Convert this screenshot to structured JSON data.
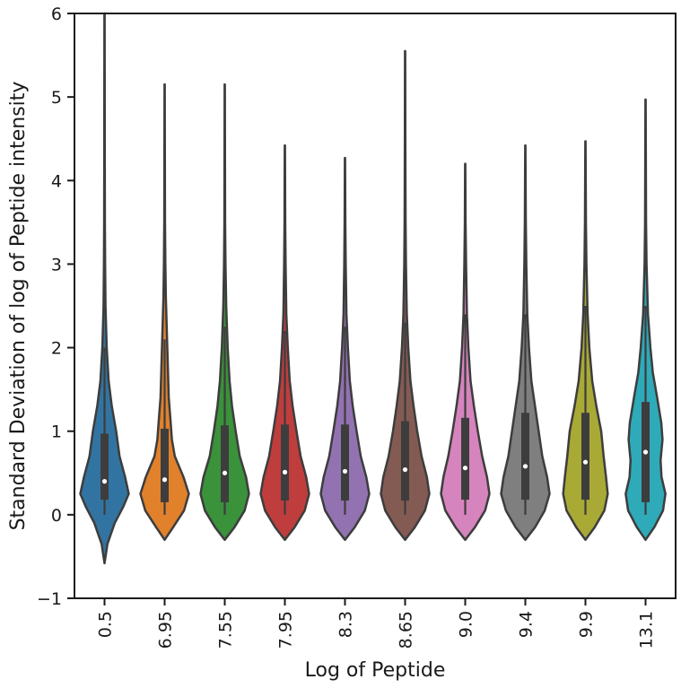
{
  "chart_data": {
    "type": "violin",
    "xlabel": "Log of Peptide",
    "ylabel": "Standard Deviation of log of Peptide intensity",
    "ylim": [
      -1,
      6
    ],
    "yticks": [
      -1,
      0,
      1,
      2,
      3,
      4,
      5,
      6
    ],
    "ytick_labels": [
      "−1",
      "0",
      "1",
      "2",
      "3",
      "4",
      "5",
      "6"
    ],
    "grid": false,
    "legend": "none",
    "categories": [
      "0.5",
      "6.95",
      "7.55",
      "7.95",
      "8.3",
      "8.65",
      "9.0",
      "9.4",
      "9.9",
      "13.1"
    ],
    "colors": [
      "#3274a1",
      "#e1812c",
      "#3a923a",
      "#c03d3e",
      "#9372b2",
      "#845b53",
      "#d684bd",
      "#7f7f7f",
      "#a9aa35",
      "#2eaab8"
    ],
    "violins": [
      {
        "category": "0.5",
        "min": -0.58,
        "max": 6.0,
        "q1": 0.18,
        "median": 0.4,
        "q3": 0.97,
        "whisker_low": 0.0,
        "whisker_high": 2.0,
        "density": [
          [
            -0.58,
            0.0
          ],
          [
            -0.35,
            0.12
          ],
          [
            -0.1,
            0.42
          ],
          [
            0.1,
            0.78
          ],
          [
            0.25,
            1.0
          ],
          [
            0.45,
            0.85
          ],
          [
            0.7,
            0.62
          ],
          [
            1.0,
            0.48
          ],
          [
            1.3,
            0.3
          ],
          [
            1.6,
            0.17
          ],
          [
            2.0,
            0.09
          ],
          [
            2.5,
            0.04
          ],
          [
            3.0,
            0.025
          ],
          [
            3.5,
            0.015
          ],
          [
            4.5,
            0.01
          ],
          [
            6.0,
            0.005
          ]
        ]
      },
      {
        "category": "6.95",
        "min": -0.3,
        "max": 5.15,
        "q1": 0.15,
        "median": 0.42,
        "q3": 1.03,
        "whisker_low": 0.0,
        "whisker_high": 2.1,
        "density": [
          [
            -0.3,
            0.0
          ],
          [
            -0.15,
            0.35
          ],
          [
            0.05,
            0.8
          ],
          [
            0.25,
            1.0
          ],
          [
            0.45,
            0.78
          ],
          [
            0.7,
            0.42
          ],
          [
            0.9,
            0.3
          ],
          [
            1.1,
            0.25
          ],
          [
            1.4,
            0.17
          ],
          [
            1.8,
            0.13
          ],
          [
            2.2,
            0.09
          ],
          [
            2.6,
            0.05
          ],
          [
            3.0,
            0.03
          ],
          [
            3.5,
            0.015
          ],
          [
            4.5,
            0.008
          ],
          [
            5.15,
            0.005
          ]
        ]
      },
      {
        "category": "7.55",
        "min": -0.3,
        "max": 5.15,
        "q1": 0.15,
        "median": 0.5,
        "q3": 1.07,
        "whisker_low": 0.0,
        "whisker_high": 2.25,
        "density": [
          [
            -0.3,
            0.0
          ],
          [
            -0.15,
            0.4
          ],
          [
            0.05,
            0.82
          ],
          [
            0.25,
            1.0
          ],
          [
            0.45,
            0.88
          ],
          [
            0.7,
            0.62
          ],
          [
            1.0,
            0.45
          ],
          [
            1.3,
            0.3
          ],
          [
            1.6,
            0.2
          ],
          [
            2.0,
            0.12
          ],
          [
            2.5,
            0.06
          ],
          [
            3.0,
            0.03
          ],
          [
            3.5,
            0.015
          ],
          [
            4.5,
            0.008
          ],
          [
            5.15,
            0.005
          ]
        ]
      },
      {
        "category": "7.95",
        "min": -0.3,
        "max": 4.42,
        "q1": 0.17,
        "median": 0.51,
        "q3": 1.08,
        "whisker_low": 0.0,
        "whisker_high": 2.2,
        "density": [
          [
            -0.3,
            0.0
          ],
          [
            -0.15,
            0.4
          ],
          [
            0.05,
            0.82
          ],
          [
            0.25,
            1.0
          ],
          [
            0.45,
            0.88
          ],
          [
            0.7,
            0.65
          ],
          [
            1.0,
            0.48
          ],
          [
            1.3,
            0.32
          ],
          [
            1.6,
            0.2
          ],
          [
            2.0,
            0.12
          ],
          [
            2.4,
            0.06
          ],
          [
            3.0,
            0.03
          ],
          [
            3.5,
            0.015
          ],
          [
            4.42,
            0.005
          ]
        ]
      },
      {
        "category": "8.3",
        "min": -0.3,
        "max": 4.27,
        "q1": 0.17,
        "median": 0.52,
        "q3": 1.08,
        "whisker_low": 0.0,
        "whisker_high": 2.25,
        "density": [
          [
            -0.3,
            0.0
          ],
          [
            -0.15,
            0.4
          ],
          [
            0.05,
            0.82
          ],
          [
            0.25,
            1.0
          ],
          [
            0.45,
            0.88
          ],
          [
            0.7,
            0.65
          ],
          [
            1.0,
            0.48
          ],
          [
            1.3,
            0.32
          ],
          [
            1.6,
            0.2
          ],
          [
            2.0,
            0.12
          ],
          [
            2.4,
            0.06
          ],
          [
            3.0,
            0.03
          ],
          [
            3.5,
            0.015
          ],
          [
            4.27,
            0.005
          ]
        ]
      },
      {
        "category": "8.65",
        "min": -0.3,
        "max": 5.55,
        "q1": 0.17,
        "median": 0.54,
        "q3": 1.12,
        "whisker_low": 0.0,
        "whisker_high": 2.3,
        "density": [
          [
            -0.3,
            0.0
          ],
          [
            -0.15,
            0.4
          ],
          [
            0.05,
            0.82
          ],
          [
            0.25,
            1.0
          ],
          [
            0.45,
            0.9
          ],
          [
            0.7,
            0.68
          ],
          [
            1.0,
            0.5
          ],
          [
            1.3,
            0.35
          ],
          [
            1.6,
            0.22
          ],
          [
            2.0,
            0.13
          ],
          [
            2.4,
            0.07
          ],
          [
            3.0,
            0.035
          ],
          [
            3.5,
            0.02
          ],
          [
            4.5,
            0.01
          ],
          [
            5.55,
            0.005
          ]
        ]
      },
      {
        "category": "9.0",
        "min": -0.3,
        "max": 4.2,
        "q1": 0.18,
        "median": 0.56,
        "q3": 1.16,
        "whisker_low": 0.0,
        "whisker_high": 2.4,
        "density": [
          [
            -0.3,
            0.0
          ],
          [
            -0.15,
            0.4
          ],
          [
            0.05,
            0.82
          ],
          [
            0.25,
            1.0
          ],
          [
            0.45,
            0.9
          ],
          [
            0.7,
            0.7
          ],
          [
            1.0,
            0.52
          ],
          [
            1.3,
            0.36
          ],
          [
            1.6,
            0.22
          ],
          [
            2.0,
            0.13
          ],
          [
            2.4,
            0.07
          ],
          [
            3.0,
            0.035
          ],
          [
            3.5,
            0.015
          ],
          [
            4.2,
            0.005
          ]
        ]
      },
      {
        "category": "9.4",
        "min": -0.3,
        "max": 4.42,
        "q1": 0.18,
        "median": 0.58,
        "q3": 1.22,
        "whisker_low": 0.0,
        "whisker_high": 2.4,
        "density": [
          [
            -0.3,
            0.0
          ],
          [
            -0.15,
            0.4
          ],
          [
            0.05,
            0.8
          ],
          [
            0.25,
            1.0
          ],
          [
            0.45,
            0.9
          ],
          [
            0.7,
            0.7
          ],
          [
            1.0,
            0.55
          ],
          [
            1.3,
            0.4
          ],
          [
            1.6,
            0.25
          ],
          [
            2.0,
            0.15
          ],
          [
            2.4,
            0.08
          ],
          [
            3.0,
            0.04
          ],
          [
            3.5,
            0.02
          ],
          [
            4.42,
            0.005
          ]
        ]
      },
      {
        "category": "9.9",
        "min": -0.3,
        "max": 4.47,
        "q1": 0.18,
        "median": 0.63,
        "q3": 1.22,
        "whisker_low": 0.0,
        "whisker_high": 2.5,
        "density": [
          [
            -0.3,
            0.0
          ],
          [
            -0.15,
            0.38
          ],
          [
            0.05,
            0.78
          ],
          [
            0.25,
            0.92
          ],
          [
            0.45,
            0.85
          ],
          [
            0.7,
            0.75
          ],
          [
            1.0,
            0.65
          ],
          [
            1.3,
            0.45
          ],
          [
            1.6,
            0.28
          ],
          [
            2.0,
            0.16
          ],
          [
            2.4,
            0.09
          ],
          [
            3.0,
            0.04
          ],
          [
            3.5,
            0.02
          ],
          [
            4.47,
            0.005
          ]
        ]
      },
      {
        "category": "13.1",
        "min": -0.3,
        "max": 4.97,
        "q1": 0.15,
        "median": 0.75,
        "q3": 1.35,
        "whisker_low": 0.0,
        "whisker_high": 2.5,
        "density": [
          [
            -0.3,
            0.0
          ],
          [
            -0.15,
            0.36
          ],
          [
            0.05,
            0.72
          ],
          [
            0.25,
            0.82
          ],
          [
            0.45,
            0.66
          ],
          [
            0.65,
            0.62
          ],
          [
            0.9,
            0.7
          ],
          [
            1.1,
            0.65
          ],
          [
            1.4,
            0.48
          ],
          [
            1.7,
            0.3
          ],
          [
            2.0,
            0.2
          ],
          [
            2.4,
            0.1
          ],
          [
            3.0,
            0.04
          ],
          [
            3.5,
            0.02
          ],
          [
            4.97,
            0.005
          ]
        ]
      }
    ]
  }
}
